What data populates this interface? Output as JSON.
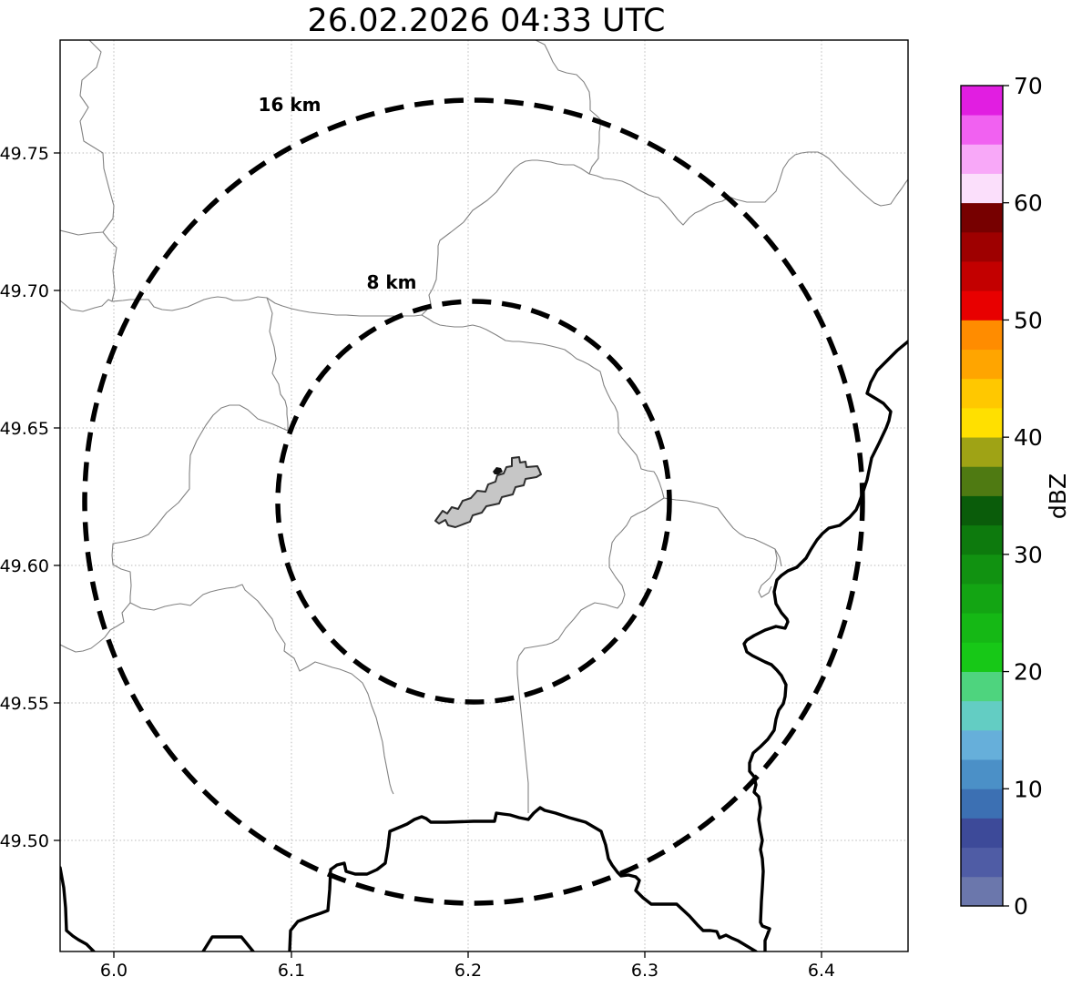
{
  "title": "26.02.2026 04:33 UTC",
  "axes": {
    "x_tick_labels": [
      "6.0",
      "6.1",
      "6.2",
      "6.3",
      "6.4"
    ],
    "y_tick_labels": [
      "49.75",
      "49.70",
      "49.65",
      "49.60",
      "49.55",
      "49.50"
    ]
  },
  "rings": {
    "outer_label": "16 km",
    "inner_label": "8 km"
  },
  "colorbar": {
    "label": "dBZ",
    "min": 0,
    "max": 70,
    "tick_labels": [
      "0",
      "10",
      "20",
      "30",
      "40",
      "50",
      "60",
      "70"
    ],
    "tick_values": [
      0,
      10,
      20,
      30,
      40,
      50,
      60,
      70
    ],
    "segment_colors_bottom_to_top": [
      "#6B77AC",
      "#4F5CA5",
      "#3D4A99",
      "#3C70B3",
      "#4B90C7",
      "#66AFDA",
      "#63CDC3",
      "#4ED47E",
      "#17C817",
      "#15B815",
      "#13A513",
      "#119211",
      "#0D7A0D",
      "#0A5C0A",
      "#4F7A12",
      "#9FA315",
      "#FFE000",
      "#FFC800",
      "#FFA500",
      "#FF8C00",
      "#E80000",
      "#C30000",
      "#9E0000",
      "#770000",
      "#FBDFFB",
      "#F8A8F8",
      "#F161F1",
      "#E11EE1"
    ]
  },
  "map_features": {
    "city_fill": "#C6C6C6",
    "city_outline": "#2E2E2E",
    "river_color": "#828282",
    "border_color": "#000000",
    "precipitation_echoes": "none"
  },
  "chart_data": {
    "type": "map",
    "title": "26.02.2026 04:33 UTC",
    "x_axis": {
      "ticks": [
        6.0,
        6.1,
        6.2,
        6.3,
        6.4
      ],
      "range": [
        5.97,
        6.449
      ]
    },
    "y_axis": {
      "ticks": [
        49.5,
        49.55,
        49.6,
        49.65,
        49.7,
        49.75
      ],
      "range": [
        49.46,
        49.791
      ]
    },
    "range_rings_km": [
      8,
      16
    ],
    "colorbar": {
      "label": "dBZ",
      "range": [
        0,
        70
      ],
      "tick_step": 10,
      "n_segments": 28
    },
    "echoes": []
  }
}
